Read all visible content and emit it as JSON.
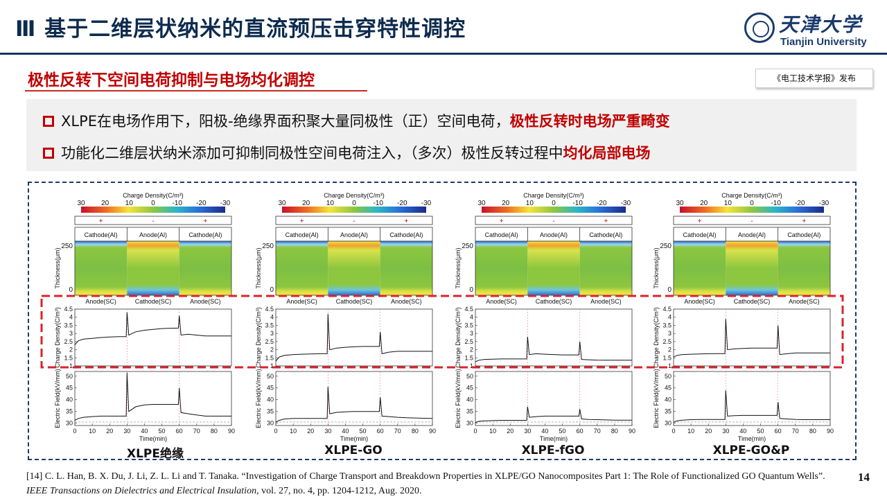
{
  "header": {
    "title": "Ⅲ 基于二维层状纳米的直流预压击穿特性调控",
    "logo_cn": "天津大学",
    "logo_en": "Tianjin University"
  },
  "subtitle": "极性反转下空间电荷抑制与电场均化调控",
  "source_tag": "《电工技术学报》发布",
  "bullets": [
    {
      "text": "XLPE在电场作用下，阳极-绝缘界面积聚大量同极性（正）空间电荷，",
      "highlight": "极性反转时电场严重畸变"
    },
    {
      "text": "功能化二维层状纳米添加可抑制同极性空间电荷注入，（多次）极性反转过程中",
      "highlight": "均化局部电场"
    }
  ],
  "colors": {
    "title_navy": "#0d2b4e",
    "accent_red": "#c00000",
    "frame_navy": "#1a3a6c"
  },
  "chart_data": [
    {
      "type": "heatmap+line",
      "panel_label": "XLPE绝缘",
      "colorbar": {
        "title": "Charge Density(C/m³)",
        "ticks": [
          "30",
          "20",
          "10",
          "0",
          "-10",
          "-20",
          "-30"
        ]
      },
      "polarity": [
        "+",
        "-",
        "+"
      ],
      "top_electrodes": [
        "Cathode(Al)",
        "Anode(Al)",
        "Cathode(Al)"
      ],
      "bottom_electrodes": [
        "Anode(SC)",
        "Cathode(SC)",
        "Anode(SC)"
      ],
      "heatmap": {
        "ylabel": "Thickness(μm)",
        "yticks": [
          "250",
          "0"
        ]
      },
      "charge_density": {
        "ylabel": "Charge Density(C/m³)",
        "yticks": [
          "4.5",
          "4",
          "3.5",
          "3",
          "2.5",
          "2",
          "1.5",
          "1"
        ],
        "ylim": [
          1,
          4.5
        ],
        "x": [
          0,
          2,
          5,
          10,
          15,
          20,
          25,
          29.5,
          30,
          31,
          35,
          40,
          45,
          50,
          55,
          59.5,
          60,
          61,
          65,
          70,
          75,
          80,
          85,
          90
        ],
        "y": [
          2.3,
          2.55,
          2.65,
          2.7,
          2.75,
          2.78,
          2.8,
          2.8,
          4.3,
          2.9,
          3.1,
          3.2,
          3.25,
          3.3,
          3.32,
          3.33,
          4.1,
          2.9,
          2.95,
          2.9,
          2.85,
          2.85,
          2.85,
          2.85
        ]
      },
      "electric_field": {
        "ylabel": "Electric Field(kV/mm)",
        "yticks": [
          "50",
          "45",
          "40",
          "35",
          "30"
        ],
        "ylim": [
          29,
          52
        ],
        "xticks": [
          "0",
          "10",
          "20",
          "30",
          "40",
          "50",
          "60",
          "70",
          "80",
          "90"
        ],
        "xlabel": "Time(min)",
        "x": [
          0,
          2,
          5,
          10,
          15,
          20,
          25,
          29.5,
          30,
          31,
          35,
          40,
          45,
          50,
          55,
          59.5,
          60,
          61,
          65,
          70,
          75,
          80,
          85,
          90
        ],
        "y": [
          31.2,
          32.0,
          32.5,
          32.8,
          33.0,
          33.0,
          33.0,
          33.0,
          51.5,
          35.0,
          37.0,
          37.8,
          38.0,
          38.0,
          38.0,
          38.0,
          45.0,
          34.5,
          34.0,
          33.5,
          33.0,
          33.0,
          33.0,
          33.0
        ],
        "dashed_ref": 30.5
      }
    },
    {
      "type": "heatmap+line",
      "panel_label": "XLPE-GO",
      "colorbar": {
        "title": "Charge Density(C/m³)",
        "ticks": [
          "30",
          "20",
          "10",
          "0",
          "-10",
          "-20",
          "-30"
        ]
      },
      "polarity": [
        "+",
        "-",
        "+"
      ],
      "top_electrodes": [
        "Cathode(Al)",
        "Anode(Al)",
        "Cathode(Al)"
      ],
      "bottom_electrodes": [
        "Anode(SC)",
        "Cathode(SC)",
        "Anode(SC)"
      ],
      "heatmap": {
        "ylabel": "Thickness(μm)",
        "yticks": [
          "250",
          "0"
        ]
      },
      "charge_density": {
        "ylabel": "Charge Density(C/m³)",
        "yticks": [
          "4.5",
          "4",
          "3.5",
          "3",
          "2.5",
          "2",
          "1.5",
          "1"
        ],
        "ylim": [
          1,
          4.5
        ],
        "x": [
          0,
          2,
          5,
          10,
          15,
          20,
          25,
          29.5,
          30,
          31,
          35,
          40,
          45,
          50,
          55,
          59.5,
          60,
          61,
          65,
          70,
          75,
          80,
          85,
          90
        ],
        "y": [
          1.3,
          1.55,
          1.65,
          1.7,
          1.72,
          1.74,
          1.75,
          1.75,
          4.2,
          2.0,
          2.1,
          2.15,
          2.18,
          2.2,
          2.2,
          2.2,
          3.1,
          1.75,
          1.85,
          1.9,
          1.9,
          1.9,
          1.9,
          1.9
        ]
      },
      "electric_field": {
        "ylabel": "Electric Field(kV/mm)",
        "yticks": [
          "50",
          "45",
          "40",
          "35",
          "30"
        ],
        "ylim": [
          29,
          52
        ],
        "xticks": [
          "0",
          "10",
          "20",
          "30",
          "40",
          "50",
          "60",
          "70",
          "80",
          "90"
        ],
        "xlabel": "Time(min)",
        "x": [
          0,
          2,
          5,
          10,
          15,
          20,
          25,
          29.5,
          30,
          31,
          35,
          40,
          45,
          50,
          55,
          59.5,
          60,
          61,
          65,
          70,
          75,
          80,
          85,
          90
        ],
        "y": [
          30.5,
          31.2,
          31.8,
          32.0,
          32.0,
          32.0,
          32.0,
          32.0,
          45.5,
          34.0,
          34.6,
          34.8,
          35.0,
          35.0,
          35.0,
          35.0,
          41.0,
          33.0,
          32.8,
          32.5,
          32.3,
          32.2,
          32.1,
          32.0
        ],
        "dashed_ref": 30.5
      }
    },
    {
      "type": "heatmap+line",
      "panel_label": "XLPE-fGO",
      "colorbar": {
        "title": "Charge Density(C/m³)",
        "ticks": [
          "30",
          "20",
          "10",
          "0",
          "-10",
          "-20",
          "-30"
        ]
      },
      "polarity": [
        "+",
        "-",
        "+"
      ],
      "top_electrodes": [
        "Cathode(Al)",
        "Anode(Al)",
        "Cathode(Al)"
      ],
      "bottom_electrodes": [
        "Anode(SC)",
        "Cathode(SC)",
        "Anode(SC)"
      ],
      "heatmap": {
        "ylabel": "Thickness(μm)",
        "yticks": [
          "250",
          "0"
        ]
      },
      "charge_density": {
        "ylabel": "Charge Density(C/m³)",
        "yticks": [
          "4.5",
          "4",
          "3.5",
          "3",
          "2.5",
          "2",
          "1.5",
          "1"
        ],
        "ylim": [
          1,
          4.5
        ],
        "x": [
          0,
          2,
          5,
          10,
          15,
          20,
          25,
          29.5,
          30,
          31,
          35,
          40,
          45,
          50,
          55,
          59.5,
          60,
          61,
          65,
          70,
          75,
          80,
          85,
          90
        ],
        "y": [
          1.25,
          1.35,
          1.4,
          1.42,
          1.43,
          1.43,
          1.43,
          1.43,
          2.8,
          1.7,
          1.75,
          1.72,
          1.7,
          1.68,
          1.68,
          1.68,
          2.5,
          1.4,
          1.38,
          1.36,
          1.35,
          1.35,
          1.35,
          1.35
        ]
      },
      "electric_field": {
        "ylabel": "Electric Field(kV/mm)",
        "yticks": [
          "50",
          "45",
          "40",
          "35",
          "30"
        ],
        "ylim": [
          29,
          52
        ],
        "xticks": [
          "0",
          "10",
          "20",
          "30",
          "40",
          "50",
          "60",
          "70",
          "80",
          "90"
        ],
        "xlabel": "Time(min)",
        "x": [
          0,
          2,
          5,
          10,
          15,
          20,
          25,
          29.5,
          30,
          31,
          35,
          40,
          45,
          50,
          55,
          59.5,
          60,
          61,
          65,
          70,
          75,
          80,
          85,
          90
        ],
        "y": [
          30.3,
          30.8,
          31.0,
          31.1,
          31.2,
          31.2,
          31.2,
          31.2,
          37.0,
          32.5,
          32.8,
          33.0,
          33.0,
          33.0,
          33.0,
          33.0,
          36.0,
          31.8,
          31.6,
          31.5,
          31.4,
          31.3,
          31.3,
          31.3
        ],
        "dashed_ref": 30.5
      }
    },
    {
      "type": "heatmap+line",
      "panel_label": "XLPE-GO&P",
      "colorbar": {
        "title": "Charge Density(C/m³)",
        "ticks": [
          "30",
          "20",
          "10",
          "0",
          "-10",
          "-20",
          "-30"
        ]
      },
      "polarity": [
        "+",
        "-",
        "+"
      ],
      "top_electrodes": [
        "Cathode(Al)",
        "Anode(Al)",
        "Cathode(Al)"
      ],
      "bottom_electrodes": [
        "Anode(SC)",
        "Cathode(SC)",
        "Anode(SC)"
      ],
      "heatmap": {
        "ylabel": "Thickness(μm)",
        "yticks": [
          "250",
          "0"
        ]
      },
      "charge_density": {
        "ylabel": "Charge Density(C/m³)",
        "yticks": [
          "4.5",
          "4",
          "3.5",
          "3",
          "2.5",
          "2",
          "1.5",
          "1"
        ],
        "ylim": [
          1,
          4.5
        ],
        "x": [
          0,
          2,
          5,
          10,
          15,
          20,
          25,
          29.5,
          30,
          31,
          35,
          40,
          45,
          50,
          55,
          59.5,
          60,
          61,
          65,
          70,
          75,
          80,
          85,
          90
        ],
        "y": [
          1.55,
          1.65,
          1.7,
          1.72,
          1.74,
          1.75,
          1.76,
          1.76,
          3.9,
          2.0,
          2.05,
          2.08,
          2.1,
          2.1,
          2.1,
          2.1,
          3.5,
          1.7,
          1.75,
          1.8,
          1.8,
          1.8,
          1.8,
          1.8
        ]
      },
      "electric_field": {
        "ylabel": "Electric Field(kV/mm)",
        "yticks": [
          "50",
          "45",
          "40",
          "35",
          "30"
        ],
        "ylim": [
          29,
          52
        ],
        "xticks": [
          "0",
          "10",
          "20",
          "30",
          "40",
          "50",
          "60",
          "70",
          "80",
          "90"
        ],
        "xlabel": "Time(min)",
        "x": [
          0,
          2,
          5,
          10,
          15,
          20,
          25,
          29.5,
          30,
          31,
          35,
          40,
          45,
          50,
          55,
          59.5,
          60,
          61,
          65,
          70,
          75,
          80,
          85,
          90
        ],
        "y": [
          30.4,
          31.0,
          31.3,
          31.5,
          31.6,
          31.6,
          31.6,
          31.6,
          44.0,
          33.0,
          33.2,
          33.3,
          33.3,
          33.3,
          33.3,
          33.3,
          39.0,
          32.0,
          31.8,
          31.6,
          31.5,
          31.5,
          31.5,
          31.5
        ],
        "dashed_ref": 30.5
      }
    }
  ],
  "reference": {
    "before_journal": "[14] C. L. Han, B. X. Du, J. Li, Z. L. Li and T. Tanaka. “Investigation of Charge Transport and Breakdown Properties in XLPE/GO Nanocomposites Part 1: The Role of Functionalized GO Quantum Wells”. ",
    "journal": "IEEE Transactions on Dielectrics and Electrical Insulation",
    "after_journal": ", vol. 27, no. 4, pp. 1204-1212, Aug. 2020."
  },
  "page_number": "14"
}
